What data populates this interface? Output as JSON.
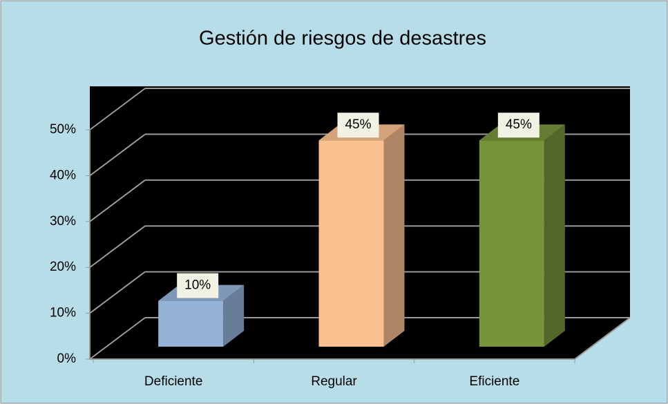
{
  "chart_data": {
    "type": "bar3d",
    "title": "Gestión de riesgos de desastres",
    "categories": [
      "Deficiente",
      "Regular",
      "Eficiente"
    ],
    "values": [
      10,
      45,
      45
    ],
    "value_labels": [
      "10%",
      "45%",
      "45%"
    ],
    "colors": [
      "#95b3d7",
      "#fac090",
      "#77933c"
    ],
    "ylim": [
      0,
      50
    ],
    "yticks": [
      {
        "value": 0,
        "label": "0%"
      },
      {
        "value": 10,
        "label": "10%"
      },
      {
        "value": 20,
        "label": "20%"
      },
      {
        "value": 30,
        "label": "30%"
      },
      {
        "value": 40,
        "label": "40%"
      },
      {
        "value": 50,
        "label": "50%"
      }
    ],
    "grid": true
  }
}
